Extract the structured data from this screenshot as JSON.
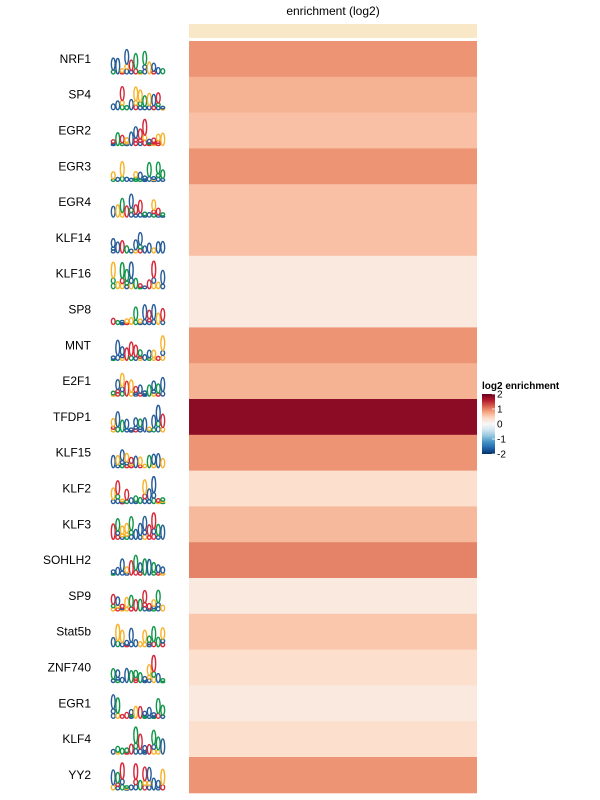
{
  "chart_data": {
    "type": "heatmap",
    "title": "enrichment (log2)",
    "rows": [
      "NRF1",
      "SP4",
      "EGR2",
      "EGR3",
      "EGR4",
      "KLF14",
      "KLF16",
      "SP8",
      "MNT",
      "E2F1",
      "TFDP1",
      "KLF15",
      "KLF2",
      "KLF3",
      "SOHLH2",
      "SP9",
      "Stat5b",
      "ZNF740",
      "EGR1",
      "KLF4",
      "YY2"
    ],
    "values": [
      0.9,
      0.7,
      0.6,
      0.9,
      0.6,
      0.6,
      0.2,
      0.2,
      0.9,
      0.7,
      1.8,
      0.9,
      0.35,
      0.65,
      1.0,
      0.2,
      0.55,
      0.35,
      0.2,
      0.35,
      0.9
    ],
    "column_annotation": {
      "color": "#F8E8C8"
    },
    "motif_logos": [
      "NRF1",
      "SP4",
      "EGR2",
      "EGR3",
      "EGR4",
      "KLF14",
      "KLF16",
      "SP8",
      "MNT",
      "E2F1",
      "TFDP1",
      "KLF15",
      "KLF2",
      "KLF3",
      "SOHLH2",
      "SP9",
      "Stat5b",
      "ZNF740",
      "EGR1",
      "KLF4",
      "YY2"
    ],
    "legend": {
      "title": "log2 enrichment",
      "ticks": [
        2,
        1,
        0,
        -1,
        -2
      ],
      "tick_labels": [
        "2",
        "1",
        "0",
        "-1",
        "-2"
      ],
      "range": [
        -2,
        2
      ],
      "colors": [
        "#053061",
        "#2166AC",
        "#4393C3",
        "#92C5DE",
        "#D1E5F0",
        "#F7F7F7",
        "#FDDBC7",
        "#F4A582",
        "#D6604D",
        "#B2182B",
        "#67001F"
      ],
      "position": "right"
    },
    "xlabel": "",
    "ylabel": ""
  },
  "base_colors": {
    "A": "#109648",
    "C": "#255C99",
    "G": "#F7B32B",
    "T": "#D62839"
  }
}
